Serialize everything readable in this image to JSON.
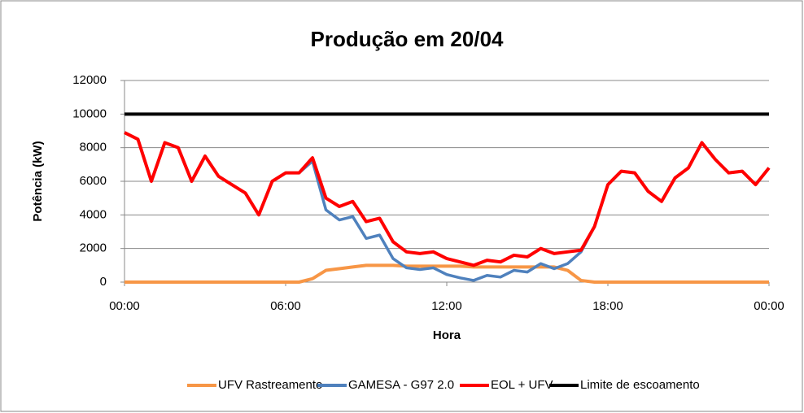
{
  "chart_data": {
    "type": "line",
    "title": "Produção em 20/04",
    "xlabel": "Hora",
    "ylabel": "Potência (kW)",
    "x": [
      0,
      0.5,
      1,
      1.5,
      2,
      2.5,
      3,
      3.5,
      4,
      4.5,
      5,
      5.5,
      6,
      6.5,
      7,
      7.5,
      8,
      8.5,
      9,
      9.5,
      10,
      10.5,
      11,
      11.5,
      12,
      12.5,
      13,
      13.5,
      14,
      14.5,
      15,
      15.5,
      16,
      16.5,
      17,
      17.5,
      18,
      18.5,
      19,
      19.5,
      20,
      20.5,
      21,
      21.5,
      22,
      22.5,
      23,
      23.5,
      24
    ],
    "series": [
      {
        "name": "UFV Rastreamento",
        "color": "#f79646",
        "values": [
          0,
          0,
          0,
          0,
          0,
          0,
          0,
          0,
          0,
          0,
          0,
          0,
          0,
          0,
          200,
          700,
          800,
          900,
          1000,
          1000,
          1000,
          950,
          950,
          950,
          950,
          950,
          900,
          900,
          900,
          900,
          900,
          900,
          900,
          700,
          100,
          0,
          0,
          0,
          0,
          0,
          0,
          0,
          0,
          0,
          0,
          0,
          0,
          0,
          0
        ]
      },
      {
        "name": "GAMESA - G97 2.0",
        "color": "#4f81bd",
        "values": [
          8900,
          8500,
          6000,
          8300,
          8000,
          6000,
          7500,
          6300,
          5800,
          5300,
          4000,
          6000,
          6500,
          6500,
          7200,
          4300,
          3700,
          3900,
          2600,
          2800,
          1400,
          850,
          750,
          850,
          450,
          250,
          100,
          400,
          300,
          700,
          600,
          1100,
          800,
          1100,
          1800,
          3300,
          5800,
          6600,
          6500,
          5400,
          4800,
          6200,
          6800,
          8300,
          7300,
          6500,
          6600,
          5800,
          6800
        ]
      },
      {
        "name": "EOL + UFV",
        "color": "#ff0000",
        "values": [
          8900,
          8500,
          6000,
          8300,
          8000,
          6000,
          7500,
          6300,
          5800,
          5300,
          4000,
          6000,
          6500,
          6500,
          7400,
          5000,
          4500,
          4800,
          3600,
          3800,
          2400,
          1800,
          1700,
          1800,
          1400,
          1200,
          1000,
          1300,
          1200,
          1600,
          1500,
          2000,
          1700,
          1800,
          1900,
          3300,
          5800,
          6600,
          6500,
          5400,
          4800,
          6200,
          6800,
          8300,
          7300,
          6500,
          6600,
          5800,
          6800
        ]
      },
      {
        "name": "Limite de escoamento",
        "color": "#000000",
        "values": [
          10000,
          10000,
          10000,
          10000,
          10000,
          10000,
          10000,
          10000,
          10000,
          10000,
          10000,
          10000,
          10000,
          10000,
          10000,
          10000,
          10000,
          10000,
          10000,
          10000,
          10000,
          10000,
          10000,
          10000,
          10000,
          10000,
          10000,
          10000,
          10000,
          10000,
          10000,
          10000,
          10000,
          10000,
          10000,
          10000,
          10000,
          10000,
          10000,
          10000,
          10000,
          10000,
          10000,
          10000,
          10000,
          10000,
          10000,
          10000,
          10000
        ]
      }
    ],
    "xlim": [
      0,
      24
    ],
    "xticks": [
      {
        "value": 0,
        "label": "00:00"
      },
      {
        "value": 6,
        "label": "06:00"
      },
      {
        "value": 12,
        "label": "12:00"
      },
      {
        "value": 18,
        "label": "18:00"
      },
      {
        "value": 24,
        "label": "00:00"
      }
    ],
    "ylim": [
      0,
      12000
    ],
    "yticks": [
      0,
      2000,
      4000,
      6000,
      8000,
      10000,
      12000
    ],
    "grid": true,
    "legend": "bottom"
  }
}
